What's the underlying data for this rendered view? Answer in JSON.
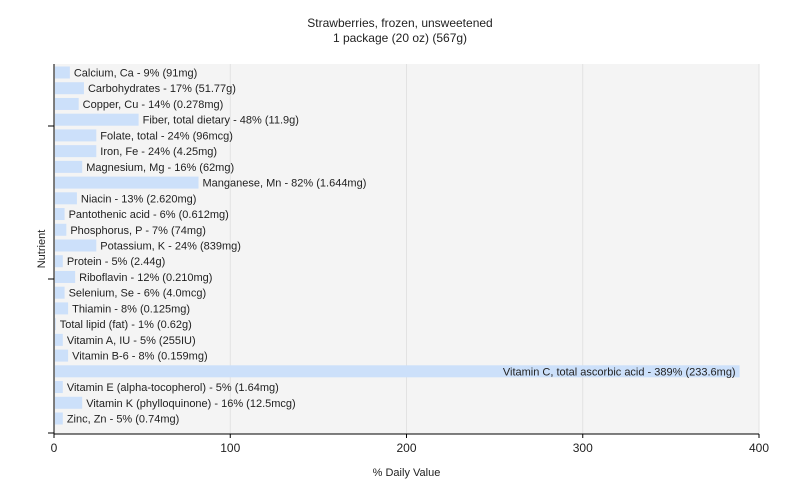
{
  "chart_data": {
    "type": "bar",
    "orientation": "horizontal",
    "title": "Strawberries, frozen, unsweetened",
    "subtitle": "1 package (20 oz) (567g)",
    "xlabel": "% Daily Value",
    "ylabel": "Nutrient",
    "xlim": [
      0,
      400
    ],
    "xticks": [
      0,
      100,
      200,
      300,
      400
    ],
    "grid": true,
    "bar_color": "#cce0fa",
    "plot_background": "#f4f4f4",
    "categories": [
      "Calcium, Ca",
      "Carbohydrates",
      "Copper, Cu",
      "Fiber, total dietary",
      "Folate, total",
      "Iron, Fe",
      "Magnesium, Mg",
      "Manganese, Mn",
      "Niacin",
      "Pantothenic acid",
      "Phosphorus, P",
      "Potassium, K",
      "Protein",
      "Riboflavin",
      "Selenium, Se",
      "Thiamin",
      "Total lipid (fat)",
      "Vitamin A, IU",
      "Vitamin B-6",
      "Vitamin C, total ascorbic acid",
      "Vitamin E (alpha-tocopherol)",
      "Vitamin K (phylloquinone)",
      "Zinc, Zn"
    ],
    "values": [
      9,
      17,
      14,
      48,
      24,
      24,
      16,
      82,
      13,
      6,
      7,
      24,
      5,
      12,
      6,
      8,
      1,
      5,
      8,
      389,
      5,
      16,
      5
    ],
    "labels": [
      "Calcium, Ca - 9% (91mg)",
      "Carbohydrates - 17% (51.77g)",
      "Copper, Cu - 14% (0.278mg)",
      "Fiber, total dietary - 48% (11.9g)",
      "Folate, total - 24% (96mcg)",
      "Iron, Fe - 24% (4.25mg)",
      "Magnesium, Mg - 16% (62mg)",
      "Manganese, Mn - 82% (1.644mg)",
      "Niacin - 13% (2.620mg)",
      "Pantothenic acid - 6% (0.612mg)",
      "Phosphorus, P - 7% (74mg)",
      "Potassium, K - 24% (839mg)",
      "Protein - 5% (2.44g)",
      "Riboflavin - 12% (0.210mg)",
      "Selenium, Se - 6% (4.0mcg)",
      "Thiamin - 8% (0.125mg)",
      "Total lipid (fat) - 1% (0.62g)",
      "Vitamin A, IU - 5% (255IU)",
      "Vitamin B-6 - 8% (0.159mg)",
      "Vitamin C, total ascorbic acid - 389% (233.6mg)",
      "Vitamin E (alpha-tocopherol) - 5% (1.64mg)",
      "Vitamin K (phylloquinone) - 16% (12.5mcg)",
      "Zinc, Zn - 5% (0.74mg)"
    ]
  }
}
